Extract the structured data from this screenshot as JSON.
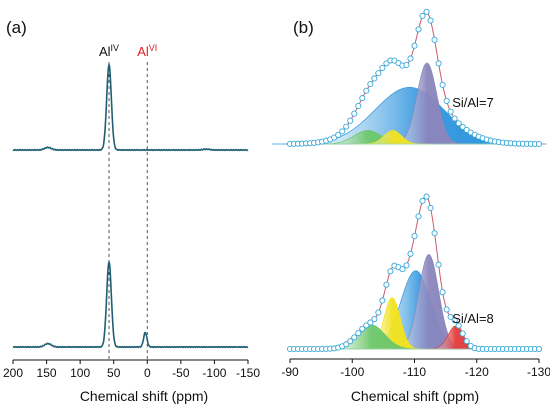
{
  "colors": {
    "spectrum": "#1f5f73",
    "circle": "#3aa8d8",
    "envelope": "#c85a6a",
    "guide": "#555555",
    "al_iv": "#111111",
    "al_vi": "#e0201e",
    "blue_peak": "#2f95dd",
    "purple_peak": "#8a86bd",
    "yellow_peak": "#f1e21e",
    "green_peak": "#6dc76a",
    "red_peak": "#e23b3b"
  },
  "chart_data": [
    {
      "type": "line",
      "panel_label": "(a)",
      "xlabel": "Chemical shift (ppm)",
      "ylabel": "",
      "xlim": [
        200,
        -150
      ],
      "x_ticks": [
        200,
        150,
        100,
        50,
        0,
        -50,
        -100,
        -150
      ],
      "x_tick_labels": [
        "200",
        "150",
        "100",
        "50",
        "0",
        "-50",
        "-100",
        "-150"
      ],
      "annotations": [
        {
          "base": "Al",
          "superscript": "IV",
          "x": 57
        },
        {
          "base": "Al",
          "superscript": "VI",
          "x": 0
        }
      ],
      "series": [
        {
          "peaks": [
            {
              "center": 57,
              "height": 1.0,
              "width": 3.5
            },
            {
              "center": 148,
              "height": 0.03,
              "width": 5
            },
            {
              "center": -88,
              "height": 0.01,
              "width": 5
            }
          ]
        },
        {
          "peaks": [
            {
              "center": 57,
              "height": 1.0,
              "width": 3.5
            },
            {
              "center": 3,
              "height": 0.17,
              "width": 2.5
            },
            {
              "center": 148,
              "height": 0.04,
              "width": 5
            }
          ]
        }
      ]
    },
    {
      "type": "line",
      "panel_label": "(b)",
      "xlabel": "Chemical shift (ppm)",
      "ylabel": "",
      "xlim": [
        -90,
        -130
      ],
      "x_ticks": [
        -90,
        -100,
        -110,
        -120,
        -130
      ],
      "x_tick_labels": [
        "-90",
        "-100",
        "-110",
        "-120",
        "-130"
      ],
      "spectra": [
        {
          "label": "Si/Al=7",
          "components": [
            {
              "center": -109.2,
              "height": 0.42,
              "width": 5.5,
              "color": "blue"
            },
            {
              "center": -112.0,
              "height": 0.6,
              "width": 1.6,
              "color": "purple"
            },
            {
              "center": -106.5,
              "height": 0.1,
              "width": 1.4,
              "color": "yellow"
            },
            {
              "center": -102.5,
              "height": 0.1,
              "width": 2.2,
              "color": "green"
            }
          ],
          "shoulder": {
            "center": -104.8,
            "height": 0.15,
            "width": 3.0
          }
        },
        {
          "label": "Si/Al=8",
          "components": [
            {
              "center": -110.2,
              "height": 0.58,
              "width": 2.4,
              "color": "blue"
            },
            {
              "center": -112.3,
              "height": 0.7,
              "width": 1.6,
              "color": "purple"
            },
            {
              "center": -106.4,
              "height": 0.38,
              "width": 1.3,
              "color": "yellow"
            },
            {
              "center": -103.0,
              "height": 0.18,
              "width": 2.2,
              "color": "green"
            },
            {
              "center": -116.6,
              "height": 0.17,
              "width": 1.2,
              "color": "red"
            }
          ],
          "shoulder": null
        }
      ]
    }
  ]
}
